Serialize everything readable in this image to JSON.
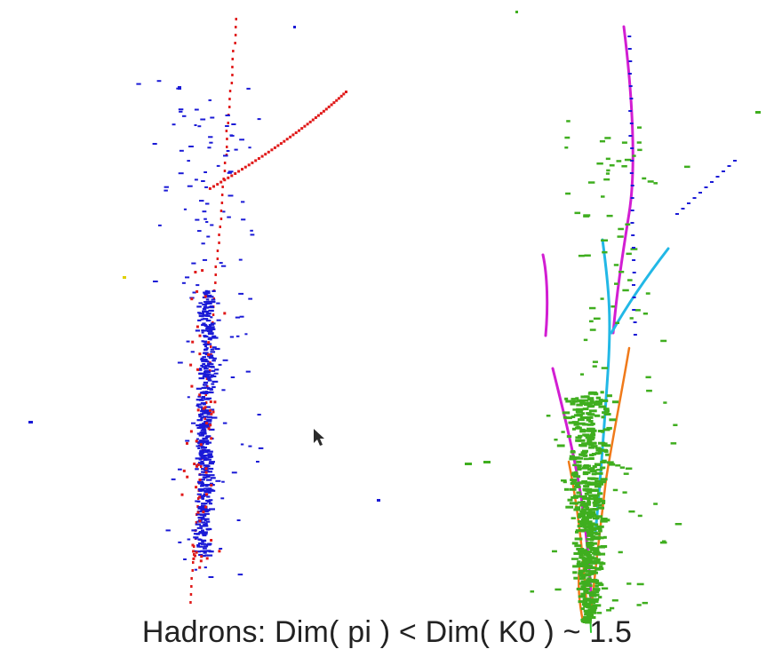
{
  "caption": "Hadrons: Dim( pi ) < Dim( K0 ) ~ 1.5",
  "colors": {
    "background": "#ffffff",
    "hit_blue": "#1a1ad6",
    "hit_red": "#e01a1a",
    "hit_yellow": "#e0d000",
    "hit_green": "#3fae1f",
    "track_magenta": "#d21ed2",
    "track_cyan": "#22b8e6",
    "track_orange": "#f07a1a",
    "track_green": "#2ecc2e",
    "cursor": "#333333"
  },
  "panels": [
    {
      "name": "pi-event-display",
      "content": "pion hadronic shower hits"
    },
    {
      "name": "k0-event-display",
      "content": "K0 hadronic shower hits with reconstructed tracks"
    }
  ],
  "icons": [
    "mouse-cursor-icon"
  ]
}
